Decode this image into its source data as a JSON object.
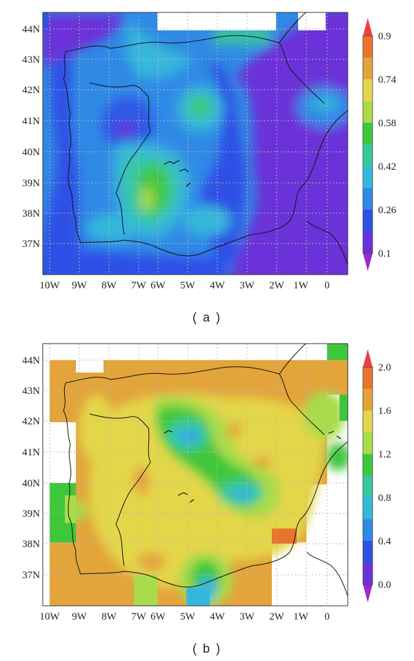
{
  "maps": [
    {
      "id": "a",
      "caption": "( a )",
      "lat_labels": [
        "44N",
        "43N",
        "42N",
        "41N",
        "40N",
        "39N",
        "38N",
        "37N"
      ],
      "lon_labels": [
        "10W",
        "9W",
        "8W",
        "7W",
        "6W",
        "5W",
        "4W",
        "3W",
        "2W",
        "1W",
        "0"
      ],
      "colorbar": {
        "labels": [
          "0.9",
          "0.74",
          "0.58",
          "0.42",
          "0.26",
          "0.1"
        ],
        "colors": [
          "#e8742d",
          "#e3a43a",
          "#e4d64a",
          "#a8dc4a",
          "#3fc73c",
          "#37c8a0",
          "#35b7dc",
          "#2f8ae6",
          "#2f4fe6",
          "#6a33d8"
        ],
        "over_color": "#ef3f43",
        "under_color": "#9b2bc9"
      }
    },
    {
      "id": "b",
      "caption": "( b )",
      "lat_labels": [
        "44N",
        "43N",
        "42N",
        "41N",
        "40N",
        "39N",
        "38N",
        "37N"
      ],
      "lon_labels": [
        "10W",
        "9W",
        "8W",
        "7W",
        "6W",
        "5W",
        "4W",
        "3W",
        "2W",
        "1W",
        "0"
      ],
      "colorbar": {
        "labels": [
          "2.0",
          "1.6",
          "1.2",
          "0.8",
          "0.4",
          "0.0"
        ],
        "colors": [
          "#e8742d",
          "#e3a43a",
          "#e4d64a",
          "#a8dc4a",
          "#3fc73c",
          "#37c8a0",
          "#35b7dc",
          "#2f8ae6",
          "#2f4fe6",
          "#6a33d8"
        ],
        "over_color": "#ef3f43",
        "under_color": "#9b2bc9"
      }
    }
  ]
}
